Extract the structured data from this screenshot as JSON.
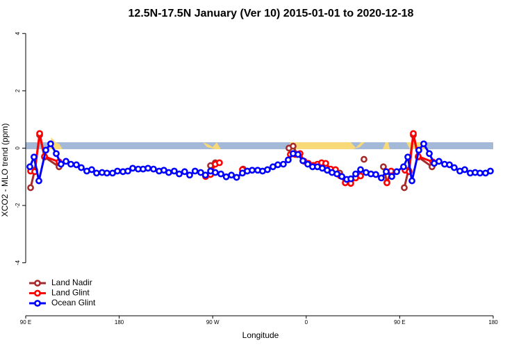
{
  "chart_data": {
    "type": "line",
    "title": "12.5N-17.5N January (Ver 10)   2015-01-01 to 2020-12-18",
    "xlabel": "Longitude",
    "ylabel": "XCO2 - MLO trend (ppm)",
    "xlim": [
      90,
      540
    ],
    "ylim": [
      -5.8,
      4.2
    ],
    "xticks": [
      {
        "value": 90,
        "label": "90 E"
      },
      180,
      {
        "value": 270,
        "label": "90 W"
      },
      {
        "value": 360,
        "label": "0"
      },
      {
        "value": 450,
        "label": "90 E"
      },
      {
        "value": 540,
        "label": "180"
      }
    ],
    "yticks": [
      4,
      2,
      0,
      -2,
      -4
    ],
    "legend": "bottom-left",
    "series": [
      {
        "name": "Land Nadir",
        "color": "#a52a2a",
        "x": [
          94.7,
          98.7,
          103.4,
          108.1,
          122.1,
          null,
          267.9,
          272.5,
          null,
          299.3,
          null,
          343.4,
          347.4,
          351.4,
          null,
          392.2,
          null,
          415.6,
          null,
          434.3,
          437.7,
          null,
          454.4,
          458.4,
          463.1,
          467.8,
          481.1
        ],
        "values": [
          -1.38,
          -0.77,
          0.46,
          -0.31,
          -0.65,
          null,
          -0.61,
          -0.51,
          null,
          -0.73,
          null,
          0,
          0.07,
          -0.22,
          null,
          -0.87,
          null,
          -0.39,
          null,
          -0.65,
          -1.19,
          null,
          -1.38,
          -0.77,
          0.46,
          -0.31,
          -0.65
        ]
      },
      {
        "name": "Land Glint",
        "color": "#ff0000",
        "x": [
          94.7,
          98.7,
          103.4,
          108.1,
          122.1,
          null,
          263.2,
          267.9,
          272.5,
          276.5,
          null,
          298.6,
          null,
          344.7,
          349.4,
          354.1,
          358.1,
          362.1,
          366.8,
          370.8,
          374.8,
          378.8,
          383.5,
          388.2,
          392.9,
          397.6,
          402.9,
          407.6,
          412.3,
          null,
          437.7,
          441.7,
          null,
          455.1,
          459.1,
          463.1,
          467.8,
          481.8
        ],
        "values": [
          -0.8,
          -0.82,
          0.51,
          -0.29,
          -0.48,
          null,
          -0.99,
          -0.92,
          -0.56,
          -0.51,
          null,
          -0.75,
          null,
          -0.22,
          -0.22,
          -0.19,
          -0.46,
          -0.53,
          -0.6,
          -0.56,
          -0.51,
          -0.53,
          -0.73,
          -0.75,
          -0.97,
          -1.21,
          -1.23,
          -1.04,
          -0.97,
          null,
          -1.21,
          -0.8,
          null,
          -0.77,
          -0.82,
          0.51,
          -0.29,
          -0.48
        ]
      },
      {
        "name": "Ocean Glint",
        "color": "#0000ff",
        "x": [
          94,
          98,
          102.7,
          109.4,
          114,
          119.4,
          124,
          128.8,
          133.5,
          138.8,
          143.5,
          148.8,
          153.5,
          158.2,
          163.5,
          168.2,
          173.6,
          178.3,
          183.6,
          188.3,
          193,
          198.3,
          203,
          207.7,
          213,
          218.4,
          223,
          227.7,
          233,
          237.8,
          243,
          247.8,
          253,
          258.5,
          263,
          267.9,
          272.5,
          277.9,
          283,
          288,
          293,
          298.6,
          303.3,
          308,
          313.3,
          318,
          322.7,
          328,
          332.7,
          338,
          342.7,
          347.4,
          352.1,
          356.8,
          361.5,
          366.1,
          370.8,
          375.5,
          380.2,
          384.9,
          389.6,
          394.3,
          399,
          403,
          407.6,
          412.3,
          417.6,
          422.3,
          427,
          432.3,
          437,
          442.4,
          447.1,
          453.7,
          457.8,
          461.8,
          468.4,
          473.1,
          478.5,
          483.2,
          487.8,
          493.2,
          497.9,
          502.5,
          507.9,
          512.6,
          517.9,
          522.6,
          527.3,
          532.6,
          537.3
        ],
        "values": [
          -0.65,
          -0.31,
          -1.14,
          -0.07,
          0.15,
          -0.19,
          -0.56,
          -0.46,
          -0.56,
          -0.58,
          -0.68,
          -0.8,
          -0.75,
          -0.87,
          -0.85,
          -0.87,
          -0.87,
          -0.8,
          -0.82,
          -0.8,
          -0.7,
          -0.73,
          -0.73,
          -0.7,
          -0.73,
          -0.8,
          -0.77,
          -0.85,
          -0.8,
          -0.9,
          -0.82,
          -0.94,
          -0.8,
          -0.85,
          -0.94,
          -0.8,
          -0.85,
          -0.9,
          -1.0,
          -0.94,
          -1.02,
          -0.87,
          -0.8,
          -0.77,
          -0.77,
          -0.8,
          -0.75,
          -0.65,
          -0.58,
          -0.56,
          -0.41,
          -0.19,
          -0.22,
          -0.44,
          -0.56,
          -0.65,
          -0.65,
          -0.7,
          -0.77,
          -0.85,
          -0.9,
          -0.99,
          -1.09,
          -1.07,
          -0.9,
          -0.75,
          -0.85,
          -0.9,
          -0.92,
          -1.04,
          -0.82,
          -0.99,
          -0.82,
          -0.65,
          -0.31,
          -1.14,
          -0.07,
          0.15,
          -0.19,
          -0.53,
          -0.46,
          -0.56,
          -0.58,
          -0.68,
          -0.8,
          -0.75,
          -0.87,
          -0.85,
          -0.87,
          -0.87,
          -0.8
        ]
      }
    ]
  }
}
